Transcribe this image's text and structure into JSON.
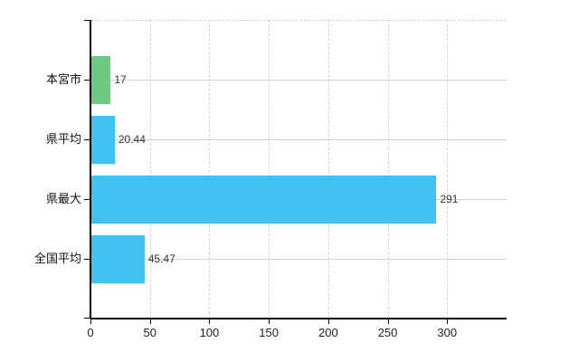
{
  "chart_data": {
    "type": "bar",
    "orientation": "horizontal",
    "title": "",
    "xlabel": "",
    "ylabel": "",
    "categories": [
      "本宮市",
      "県平均",
      "県最大",
      "全国平均"
    ],
    "values": [
      17,
      20.44,
      291,
      45.47
    ],
    "value_labels": [
      "17",
      "20.44",
      "291",
      "45.47"
    ],
    "bar_colors": [
      "#6eca7f",
      "#40c1f0",
      "#40c1f0",
      "#40c1f0"
    ],
    "x_ticks": [
      0,
      50,
      100,
      150,
      200,
      250,
      300
    ],
    "x_tick_labels": [
      "0",
      "50",
      "100",
      "150",
      "200",
      "250",
      "300"
    ],
    "xlim": [
      0,
      350
    ],
    "grid": "on",
    "legend": "none"
  },
  "colors": {
    "background": "#ffffff",
    "grid": "#d4d4d4",
    "axis": "#000000",
    "category_text": "#111111",
    "value_text": "#333333",
    "tick_text": "#222222",
    "bar_green": "#6eca7f",
    "bar_blue": "#40c1f0"
  }
}
